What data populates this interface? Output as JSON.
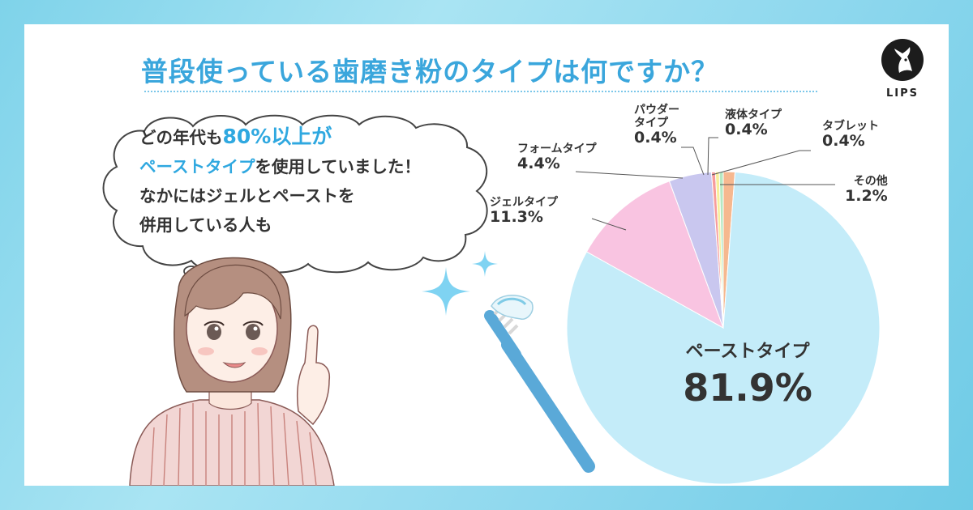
{
  "title": "普段使っている歯磨き粉のタイプは何ですか？",
  "logo": {
    "text": "LIPS"
  },
  "bubble": {
    "line1_pre": "どの年代も",
    "line1_highlight": "80%以上が",
    "line2_highlight": "ペーストタイプ",
    "line2_post": "を使用していました！",
    "line3": "なかにはジェルとペーストを",
    "line4": "併用している人も"
  },
  "colors": {
    "accent": "#3aa6dc",
    "paste": "#c4ecf9",
    "gel": "#f9c4e1",
    "foam": "#c9c7ef",
    "powder": "#f79c9c",
    "liquid": "#f7ef9b",
    "tablet": "#b5e8c3",
    "other": "#f6b88f"
  },
  "chart_data": {
    "type": "pie",
    "title": "普段使っている歯磨き粉のタイプは何ですか？",
    "slices": [
      {
        "label": "ペーストタイプ",
        "value": 81.9,
        "display": "81.9%"
      },
      {
        "label": "ジェルタイプ",
        "value": 11.3,
        "display": "11.3%"
      },
      {
        "label": "フォームタイプ",
        "value": 4.4,
        "display": "4.4%"
      },
      {
        "label": "パウダータイプ",
        "value": 0.4,
        "display": "0.4%"
      },
      {
        "label": "液体タイプ",
        "value": 0.4,
        "display": "0.4%"
      },
      {
        "label": "タブレット",
        "value": 0.4,
        "display": "0.4%"
      },
      {
        "label": "その他",
        "value": 1.2,
        "display": "1.2%"
      }
    ]
  },
  "labels": {
    "paste": {
      "name": "ペーストタイプ",
      "pct": "81.9%"
    },
    "gel": {
      "name": "ジェルタイプ",
      "pct": "11.3%"
    },
    "foam": {
      "name": "フォームタイプ",
      "pct": "4.4%"
    },
    "powder": {
      "name1": "パウダー",
      "name2": "タイプ",
      "pct": "0.4%"
    },
    "liquid": {
      "name": "液体タイプ",
      "pct": "0.4%"
    },
    "tablet": {
      "name": "タブレット",
      "pct": "0.4%"
    },
    "other": {
      "name": "その他",
      "pct": "1.2%"
    }
  }
}
